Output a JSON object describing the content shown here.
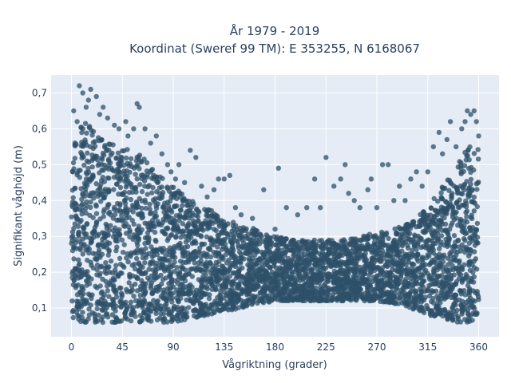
{
  "chart_data": {
    "type": "scatter",
    "title_line1": "År 1979 - 2019",
    "title_line2": "Koordinat (Sweref 99 TM): E 353255, N 6168067",
    "xlabel": "Vågriktning (grader)",
    "ylabel": "Signifikant våghöjd (m)",
    "xlim": [
      -18,
      378
    ],
    "ylim": [
      0.02,
      0.75
    ],
    "x_ticks": [
      0,
      45,
      90,
      135,
      180,
      225,
      270,
      315,
      360
    ],
    "y_ticks": [
      0.1,
      0.2,
      0.3,
      0.4,
      0.5,
      0.6,
      0.7
    ],
    "y_tick_labels": [
      "0,1",
      "0,2",
      "0,3",
      "0,4",
      "0,5",
      "0,6",
      "0,7"
    ],
    "marker_color": "#2e5068",
    "plot_bgcolor": "#e5ecf6",
    "grid": true,
    "legend": "none",
    "envelope": {
      "x": [
        0,
        10,
        20,
        30,
        45,
        60,
        75,
        90,
        105,
        120,
        135,
        150,
        165,
        180,
        195,
        210,
        225,
        240,
        255,
        270,
        285,
        300,
        315,
        330,
        340,
        350,
        360
      ],
      "y_min": [
        0.07,
        0.06,
        0.06,
        0.06,
        0.06,
        0.06,
        0.06,
        0.06,
        0.07,
        0.08,
        0.09,
        0.1,
        0.11,
        0.12,
        0.12,
        0.12,
        0.12,
        0.12,
        0.12,
        0.12,
        0.11,
        0.1,
        0.08,
        0.07,
        0.06,
        0.06,
        0.07
      ],
      "y_max": [
        0.58,
        0.62,
        0.6,
        0.58,
        0.55,
        0.53,
        0.48,
        0.44,
        0.4,
        0.38,
        0.35,
        0.33,
        0.32,
        0.3,
        0.29,
        0.29,
        0.29,
        0.29,
        0.3,
        0.31,
        0.32,
        0.34,
        0.38,
        0.45,
        0.5,
        0.55,
        0.55
      ]
    },
    "outliers": [
      {
        "x": 2,
        "y": 0.65
      },
      {
        "x": 5,
        "y": 0.62
      },
      {
        "x": 7,
        "y": 0.72
      },
      {
        "x": 10,
        "y": 0.7
      },
      {
        "x": 13,
        "y": 0.66
      },
      {
        "x": 15,
        "y": 0.68
      },
      {
        "x": 17,
        "y": 0.71
      },
      {
        "x": 22,
        "y": 0.69
      },
      {
        "x": 25,
        "y": 0.64
      },
      {
        "x": 28,
        "y": 0.66
      },
      {
        "x": 32,
        "y": 0.63
      },
      {
        "x": 38,
        "y": 0.61
      },
      {
        "x": 42,
        "y": 0.6
      },
      {
        "x": 48,
        "y": 0.62
      },
      {
        "x": 50,
        "y": 0.58
      },
      {
        "x": 55,
        "y": 0.6
      },
      {
        "x": 58,
        "y": 0.67
      },
      {
        "x": 60,
        "y": 0.66
      },
      {
        "x": 65,
        "y": 0.6
      },
      {
        "x": 70,
        "y": 0.56
      },
      {
        "x": 75,
        "y": 0.58
      },
      {
        "x": 80,
        "y": 0.53
      },
      {
        "x": 85,
        "y": 0.5
      },
      {
        "x": 88,
        "y": 0.48
      },
      {
        "x": 92,
        "y": 0.46
      },
      {
        "x": 95,
        "y": 0.5
      },
      {
        "x": 100,
        "y": 0.45
      },
      {
        "x": 105,
        "y": 0.54
      },
      {
        "x": 110,
        "y": 0.52
      },
      {
        "x": 115,
        "y": 0.44
      },
      {
        "x": 120,
        "y": 0.41
      },
      {
        "x": 126,
        "y": 0.43
      },
      {
        "x": 130,
        "y": 0.46
      },
      {
        "x": 135,
        "y": 0.46
      },
      {
        "x": 140,
        "y": 0.47
      },
      {
        "x": 145,
        "y": 0.38
      },
      {
        "x": 150,
        "y": 0.36
      },
      {
        "x": 160,
        "y": 0.35
      },
      {
        "x": 170,
        "y": 0.43
      },
      {
        "x": 180,
        "y": 0.32
      },
      {
        "x": 183,
        "y": 0.49
      },
      {
        "x": 190,
        "y": 0.38
      },
      {
        "x": 200,
        "y": 0.36
      },
      {
        "x": 208,
        "y": 0.38
      },
      {
        "x": 215,
        "y": 0.46
      },
      {
        "x": 220,
        "y": 0.38
      },
      {
        "x": 225,
        "y": 0.52
      },
      {
        "x": 232,
        "y": 0.44
      },
      {
        "x": 238,
        "y": 0.46
      },
      {
        "x": 242,
        "y": 0.5
      },
      {
        "x": 245,
        "y": 0.42
      },
      {
        "x": 250,
        "y": 0.4
      },
      {
        "x": 255,
        "y": 0.38
      },
      {
        "x": 262,
        "y": 0.43
      },
      {
        "x": 265,
        "y": 0.46
      },
      {
        "x": 270,
        "y": 0.38
      },
      {
        "x": 275,
        "y": 0.5
      },
      {
        "x": 280,
        "y": 0.5
      },
      {
        "x": 285,
        "y": 0.4
      },
      {
        "x": 290,
        "y": 0.44
      },
      {
        "x": 295,
        "y": 0.4
      },
      {
        "x": 300,
        "y": 0.46
      },
      {
        "x": 305,
        "y": 0.48
      },
      {
        "x": 310,
        "y": 0.44
      },
      {
        "x": 315,
        "y": 0.48
      },
      {
        "x": 320,
        "y": 0.55
      },
      {
        "x": 325,
        "y": 0.59
      },
      {
        "x": 328,
        "y": 0.53
      },
      {
        "x": 332,
        "y": 0.57
      },
      {
        "x": 335,
        "y": 0.62
      },
      {
        "x": 340,
        "y": 0.55
      },
      {
        "x": 345,
        "y": 0.6
      },
      {
        "x": 348,
        "y": 0.62
      },
      {
        "x": 350,
        "y": 0.65
      },
      {
        "x": 353,
        "y": 0.64
      },
      {
        "x": 356,
        "y": 0.65
      },
      {
        "x": 358,
        "y": 0.62
      },
      {
        "x": 360,
        "y": 0.58
      }
    ]
  }
}
